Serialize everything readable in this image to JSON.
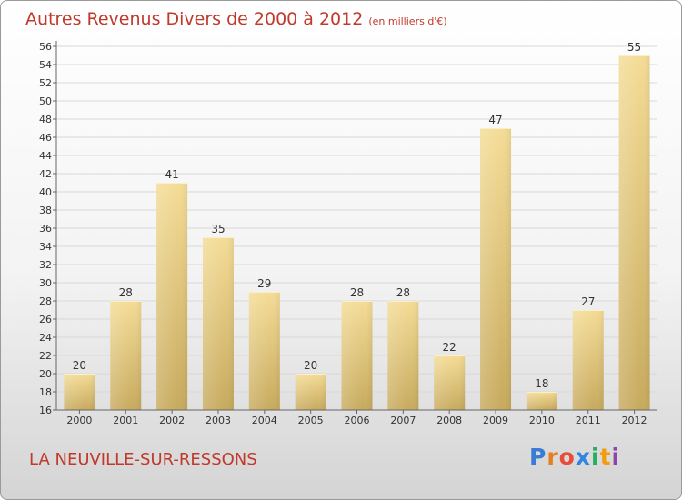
{
  "title": {
    "main": "Autres Revenus Divers de 2000 à 2012",
    "unit": "(en milliers d'€)"
  },
  "place_name": "LA NEUVILLE-SUR-RESSONS",
  "logo": {
    "text": "Proxiti",
    "letter_colors": [
      "#3a7bd5",
      "#e67e22",
      "#e74c3c",
      "#2e86de",
      "#27ae60",
      "#f39c12",
      "#8e44ad"
    ]
  },
  "colors": {
    "bar_light": "#f4dc96",
    "bar_dark": "#c7aa5e",
    "grid": "#d8d8d8",
    "axis": "#666666",
    "title": "#c0392b"
  },
  "chart_data": {
    "type": "bar",
    "categories": [
      "2000",
      "2001",
      "2002",
      "2003",
      "2004",
      "2005",
      "2006",
      "2007",
      "2008",
      "2009",
      "2010",
      "2011",
      "2012"
    ],
    "values": [
      20,
      28,
      41,
      35,
      29,
      20,
      28,
      28,
      22,
      47,
      18,
      27,
      55
    ],
    "ylim": [
      16,
      56
    ],
    "yticks": [
      16,
      18,
      20,
      22,
      24,
      26,
      28,
      30,
      32,
      34,
      36,
      38,
      40,
      42,
      44,
      46,
      48,
      50,
      52,
      54,
      56
    ],
    "grid": true,
    "data_labels": true
  }
}
